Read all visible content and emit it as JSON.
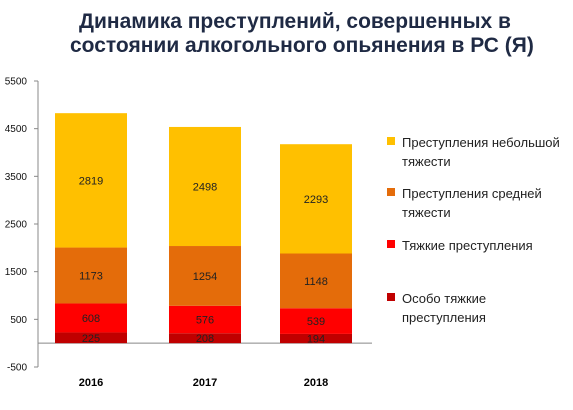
{
  "title_lines": [
    "Динамика преступлений, совершенных в",
    "состоянии алкогольного опьянения в РС (Я)"
  ],
  "chart_data": {
    "type": "bar",
    "stacked": true,
    "categories": [
      "2016",
      "2017",
      "2018"
    ],
    "series": [
      {
        "name": "Особо тяжкие преступления",
        "values": [
          225,
          208,
          194
        ],
        "color": "#c00000"
      },
      {
        "name": "Тяжкие преступления",
        "values": [
          608,
          576,
          539
        ],
        "color": "#ff0000"
      },
      {
        "name": "Преступления средней тяжести",
        "values": [
          1173,
          1254,
          1148
        ],
        "color": "#e46c0a"
      },
      {
        "name": "Преступления небольшой тяжести",
        "values": [
          2819,
          2498,
          2293
        ],
        "color": "#ffc000"
      }
    ],
    "yticks": [
      -500,
      500,
      1500,
      2500,
      3500,
      4500,
      5500
    ],
    "ylim": [
      -500,
      5500
    ],
    "grid": false,
    "legend_position": "right"
  },
  "legend_lines": [
    {
      "series_index": 3,
      "lines": [
        "Преступления небольшой",
        "тяжести"
      ]
    },
    {
      "series_index": 2,
      "lines": [
        "Преступления средней",
        "тяжести"
      ]
    },
    {
      "series_index": 1,
      "lines": [
        "Тяжкие преступления"
      ]
    },
    {
      "series_index": 0,
      "lines": [
        "Особо тяжкие",
        "преступления"
      ]
    }
  ]
}
